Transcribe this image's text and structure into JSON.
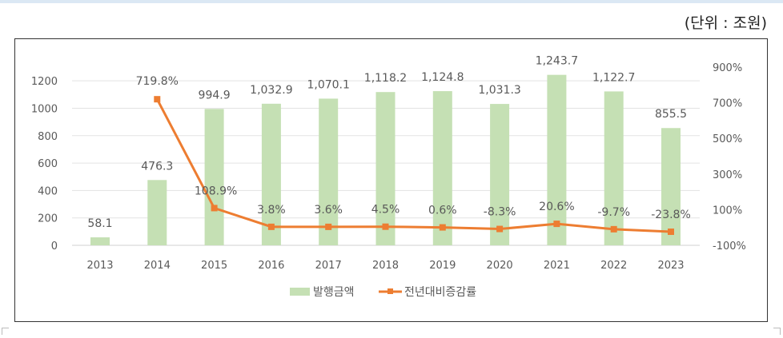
{
  "unit_label": "(단위 : 조원)",
  "chart_data": {
    "type": "bar+line",
    "categories": [
      "2013",
      "2014",
      "2015",
      "2016",
      "2017",
      "2018",
      "2019",
      "2020",
      "2021",
      "2022",
      "2023"
    ],
    "series": [
      {
        "name": "발행금액",
        "type": "bar",
        "axis": "left",
        "color": "#c5e0b4",
        "values": [
          58.1,
          476.3,
          994.9,
          1032.9,
          1070.1,
          1118.2,
          1124.8,
          1031.3,
          1243.7,
          1122.7,
          855.5
        ],
        "labels": [
          "58.1",
          "476.3",
          "994.9",
          "1,032.9",
          "1,070.1",
          "1,118.2",
          "1,124.8",
          "1,031.3",
          "1,243.7",
          "1,122.7",
          "855.5"
        ]
      },
      {
        "name": "전년대비증감률",
        "type": "line",
        "axis": "right",
        "color": "#ed7d31",
        "values": [
          null,
          719.8,
          108.9,
          3.8,
          3.6,
          4.5,
          0.6,
          -8.3,
          20.6,
          -9.7,
          -23.8
        ],
        "labels": [
          "",
          "719.8%",
          "108.9%",
          "3.8%",
          "3.6%",
          "4.5%",
          "0.6%",
          "-8.3%",
          "20.6%",
          "-9.7%",
          "-23.8%"
        ]
      }
    ],
    "left_axis": {
      "range": [
        0,
        1300
      ],
      "ticks": [
        "0",
        "200",
        "400",
        "600",
        "800",
        "1000",
        "1200"
      ]
    },
    "right_axis": {
      "range": [
        -100,
        900
      ],
      "ticks": [
        "-100%",
        "100%",
        "300%",
        "500%",
        "700%",
        "900%"
      ]
    },
    "grid": true,
    "legend": "bottom"
  }
}
